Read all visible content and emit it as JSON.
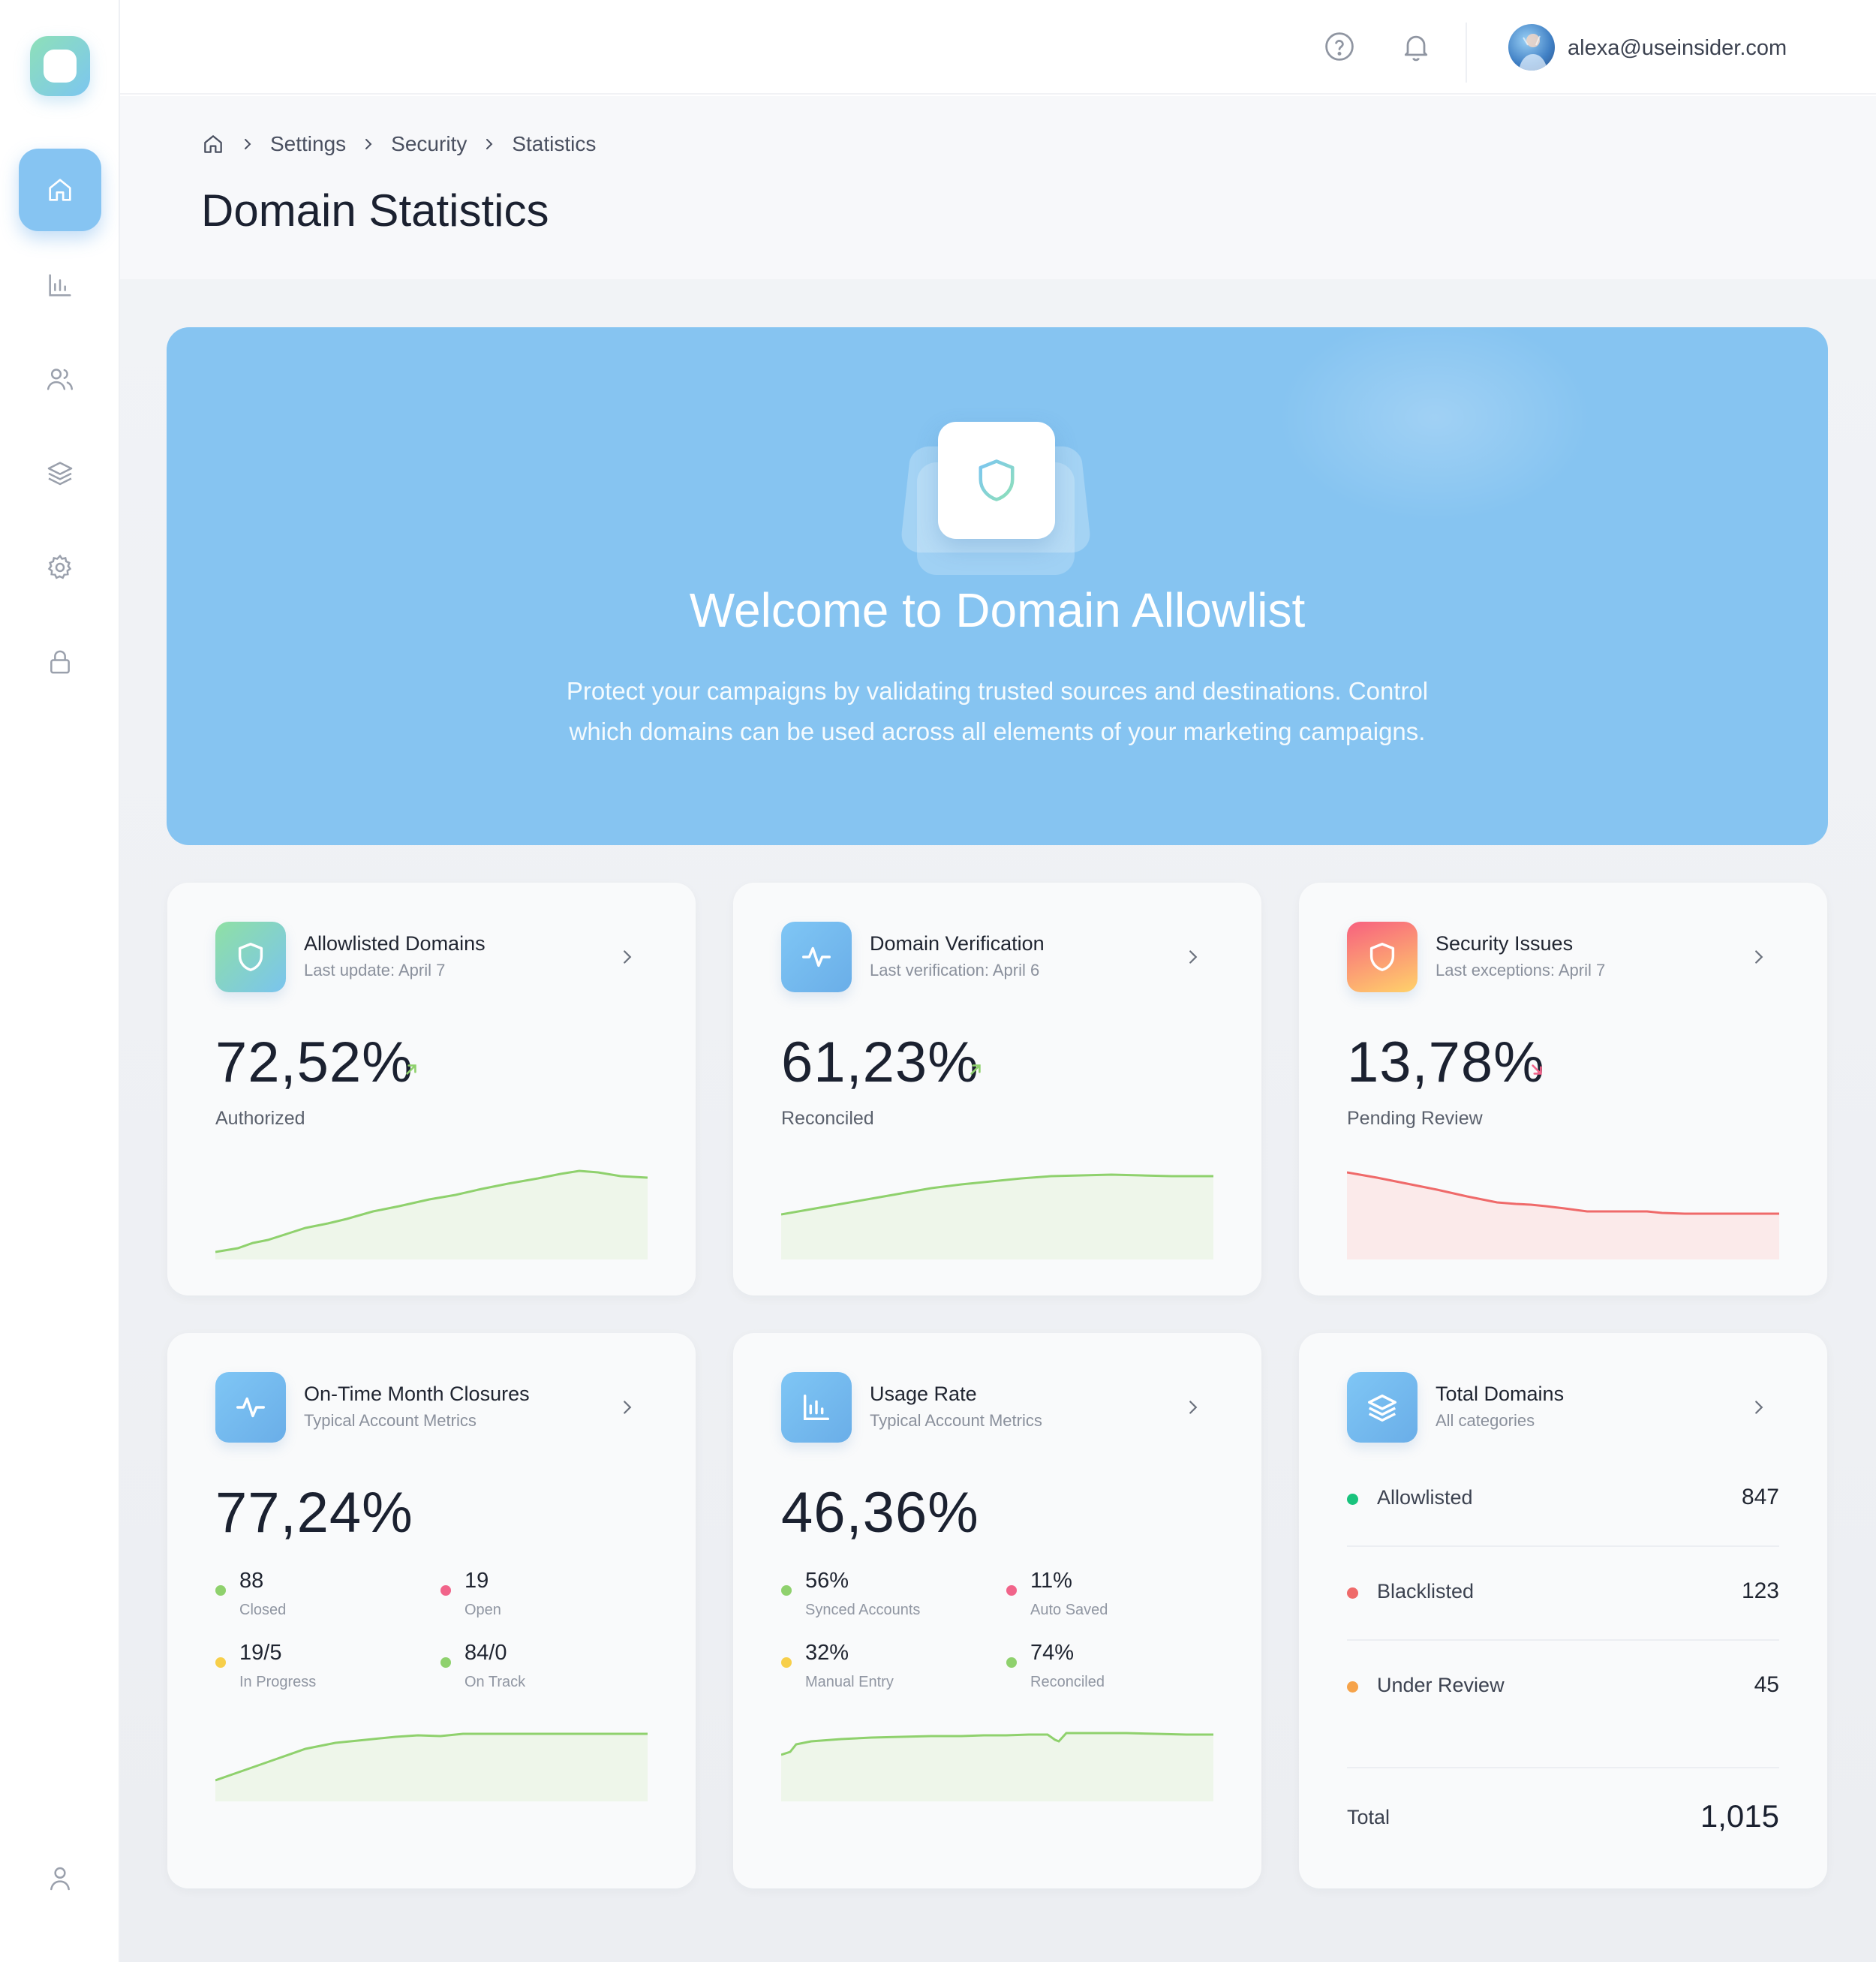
{
  "user": {
    "email": "alexa@useinsider.com"
  },
  "breadcrumb": {
    "items": [
      "Settings",
      "Security",
      "Statistics"
    ]
  },
  "page": {
    "title": "Domain Statistics"
  },
  "hero": {
    "title": "Welcome to Domain Allowlist",
    "description": "Protect your campaigns by validating trusted sources and destinations. Control which domains can be used across all elements of your marketing campaigns."
  },
  "cards": {
    "allowlisted": {
      "title": "Allowlisted Domains",
      "subtitle": "Last update: April 7",
      "value": "72,52%",
      "label": "Authorized",
      "trend": "up"
    },
    "verification": {
      "title": "Domain Verification",
      "subtitle": "Last verification: April 6",
      "value": "61,23%",
      "label": "Reconciled",
      "trend": "up"
    },
    "security": {
      "title": "Security Issues",
      "subtitle": "Last exceptions: April 7",
      "value": "13,78%",
      "label": "Pending Review",
      "trend": "down"
    },
    "ontime": {
      "title": "On-Time Month Closures",
      "subtitle": "Typical Account Metrics",
      "value": "77,24%",
      "stats": [
        {
          "value": "88",
          "label": "Closed",
          "color": "#8fd16d"
        },
        {
          "value": "19",
          "label": "Open",
          "color": "#f1648a"
        },
        {
          "value": "19/5",
          "label": "In Progress",
          "color": "#f7cf4a"
        },
        {
          "value": "84/0",
          "label": "On Track",
          "color": "#8fd16d"
        }
      ]
    },
    "usage": {
      "title": "Usage Rate",
      "subtitle": "Typical Account Metrics",
      "value": "46,36%",
      "stats": [
        {
          "value": "56%",
          "label": "Synced Accounts",
          "color": "#8fd16d"
        },
        {
          "value": "11%",
          "label": "Auto Saved",
          "color": "#f1648a"
        },
        {
          "value": "32%",
          "label": "Manual Entry",
          "color": "#f7cf4a"
        },
        {
          "value": "74%",
          "label": "Reconciled",
          "color": "#8fd16d"
        }
      ]
    },
    "total": {
      "title": "Total Domains",
      "subtitle": "All categories",
      "rows": [
        {
          "label": "Allowlisted",
          "value": "847",
          "color": "#19c37d"
        },
        {
          "label": "Blacklisted",
          "value": "123",
          "color": "#ef6a6a"
        },
        {
          "label": "Under Review",
          "value": "45",
          "color": "#f6a34a"
        }
      ],
      "total_label": "Total",
      "total_value": "1,015"
    }
  },
  "colors": {
    "accent": "#86c4f1",
    "positive_line": "#8fd16d",
    "negative_line": "#ef6a6a"
  },
  "icons": {
    "sidebar": [
      "home-icon",
      "bar-chart-icon",
      "users-icon",
      "layers-icon",
      "gear-icon",
      "lock-icon",
      "user-icon"
    ],
    "topbar": [
      "help-icon",
      "bell-icon",
      "chevron-down-icon"
    ]
  }
}
